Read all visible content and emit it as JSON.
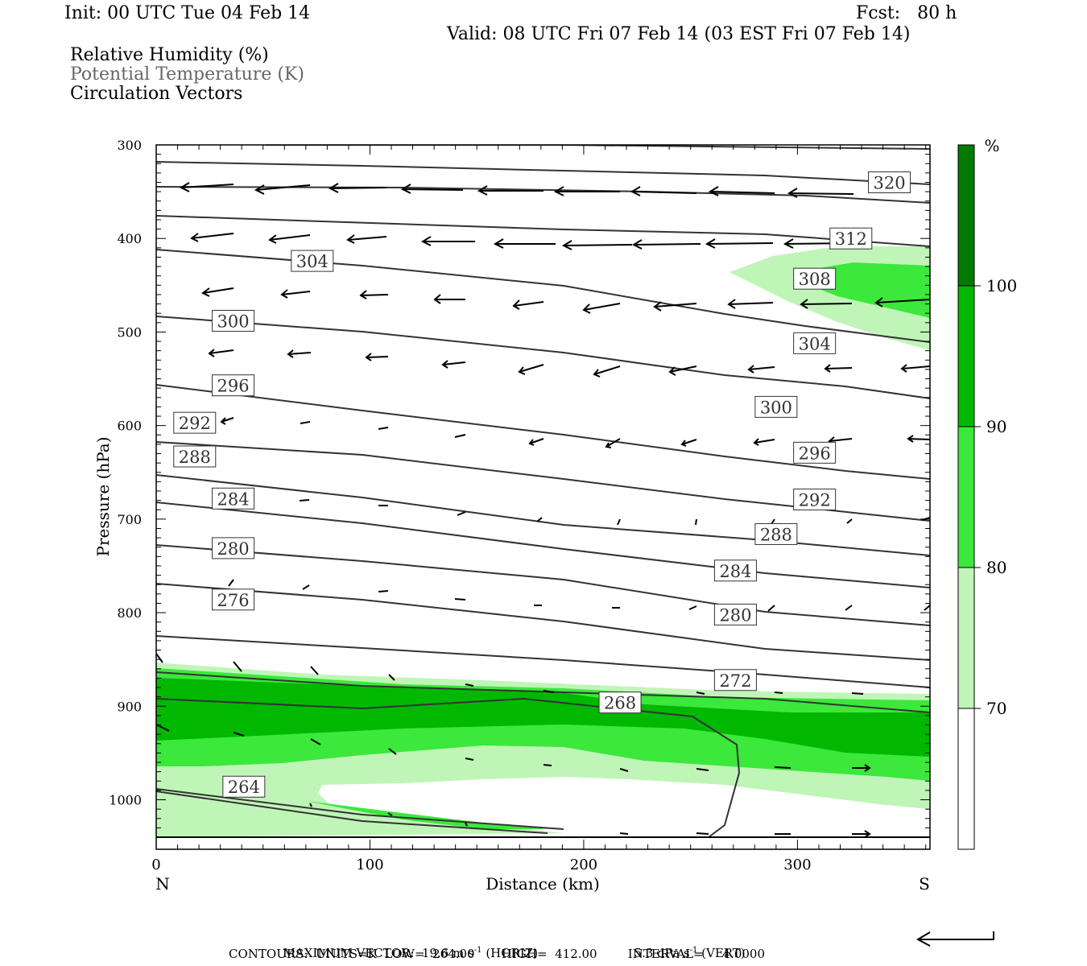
{
  "header": {
    "init": "Init: 00 UTC Tue 04 Feb 14",
    "fcst": "Fcst:   80 h",
    "valid": "Valid: 08 UTC Fri 07 Feb 14 (03 EST Fri 07 Feb 14)"
  },
  "fields": {
    "rh": "Relative Humidity (%)",
    "theta": "Potential Temperature (K)",
    "vectors": "Circulation Vectors"
  },
  "colors": {
    "rh_70_80": "#c0f5b8",
    "rh_80_90": "#3be83b",
    "rh_90_100": "#00b800",
    "rh_100_plus": "#007a00",
    "contour": "#333333"
  },
  "footer": {
    "maxvec_label": "MAXIMUM VECTOR:",
    "horiz_value": "19.6 m s",
    "horiz_unit": "(HORIZ)",
    "vert_value": "5.3 dPa s",
    "vert_unit": "(VERT)",
    "exponent": "-1",
    "contours": "CONTOURS:  UNITS=K  LOW=  264.00       HIGH=  412.00        INTERVAL=     4.0000"
  },
  "chart_data": {
    "type": "cross-section",
    "xlabel": "Distance (km)",
    "ylabel": "Pressure (hPa)",
    "x_ticks": [
      "0",
      "100",
      "200",
      "300"
    ],
    "x_ends": [
      "N",
      "S"
    ],
    "xlim": [
      0,
      362
    ],
    "y_ticks": [
      "300",
      "400",
      "500",
      "600",
      "700",
      "800",
      "900",
      "1000"
    ],
    "ylim": [
      300,
      1040
    ],
    "colorbar": {
      "unit": "%",
      "levels": [
        "70",
        "80",
        "90",
        "100"
      ]
    },
    "contour_labels": [
      {
        "text": "320",
        "x": 343,
        "p": 340
      },
      {
        "text": "312",
        "x": 325,
        "p": 400
      },
      {
        "text": "304",
        "x": 73,
        "p": 424
      },
      {
        "text": "308",
        "x": 308,
        "p": 443
      },
      {
        "text": "300",
        "x": 36,
        "p": 488
      },
      {
        "text": "304",
        "x": 308,
        "p": 512
      },
      {
        "text": "296",
        "x": 36,
        "p": 557
      },
      {
        "text": "300",
        "x": 290,
        "p": 580
      },
      {
        "text": "292",
        "x": 18,
        "p": 597
      },
      {
        "text": "296",
        "x": 308,
        "p": 629
      },
      {
        "text": "288",
        "x": 18,
        "p": 633
      },
      {
        "text": "284",
        "x": 36,
        "p": 678
      },
      {
        "text": "292",
        "x": 308,
        "p": 679
      },
      {
        "text": "288",
        "x": 290,
        "p": 716
      },
      {
        "text": "280",
        "x": 36,
        "p": 731
      },
      {
        "text": "284",
        "x": 271,
        "p": 755
      },
      {
        "text": "276",
        "x": 36,
        "p": 786
      },
      {
        "text": "280",
        "x": 271,
        "p": 802
      },
      {
        "text": "272",
        "x": 271,
        "p": 872
      },
      {
        "text": "268",
        "x": 217,
        "p": 896
      },
      {
        "text": "264",
        "x": 41,
        "p": 986
      }
    ]
  }
}
